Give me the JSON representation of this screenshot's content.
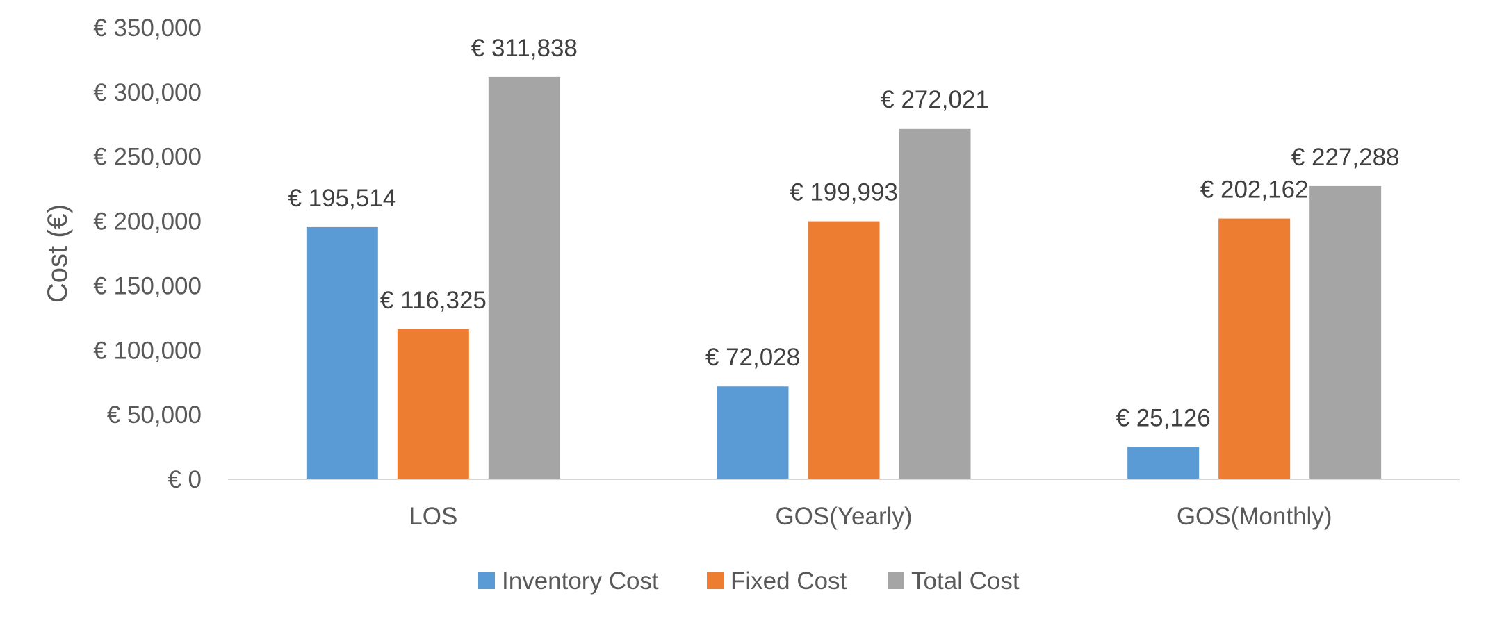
{
  "chart_data": {
    "type": "bar",
    "categories": [
      "LOS",
      "GOS(Yearly)",
      "GOS(Monthly)"
    ],
    "series": [
      {
        "name": "Inventory Cost",
        "values": [
          195514,
          72028,
          25126
        ],
        "labels": [
          "€ 195,514",
          "€ 72,028",
          "€ 25,126"
        ],
        "color": "#5B9BD5"
      },
      {
        "name": "Fixed Cost",
        "values": [
          116325,
          199993,
          202162
        ],
        "labels": [
          "€ 116,325",
          "€ 199,993",
          "€ 202,162"
        ],
        "color": "#ED7D31"
      },
      {
        "name": "Total Cost",
        "values": [
          311838,
          272021,
          227288
        ],
        "labels": [
          "€ 311,838",
          "€ 272,021",
          "€ 227,288"
        ],
        "color": "#A5A5A5"
      }
    ],
    "ylabel": "Cost (€)",
    "ylim": [
      0,
      350000
    ],
    "yticks": [
      0,
      50000,
      100000,
      150000,
      200000,
      250000,
      300000,
      350000
    ],
    "ytick_labels": [
      "€ 0",
      "€ 50,000",
      "€ 100,000",
      "€ 150,000",
      "€ 200,000",
      "€ 250,000",
      "€ 300,000",
      "€ 350,000"
    ],
    "grid": false,
    "legend": "bottom",
    "axis_color": "#D9D9D9"
  }
}
